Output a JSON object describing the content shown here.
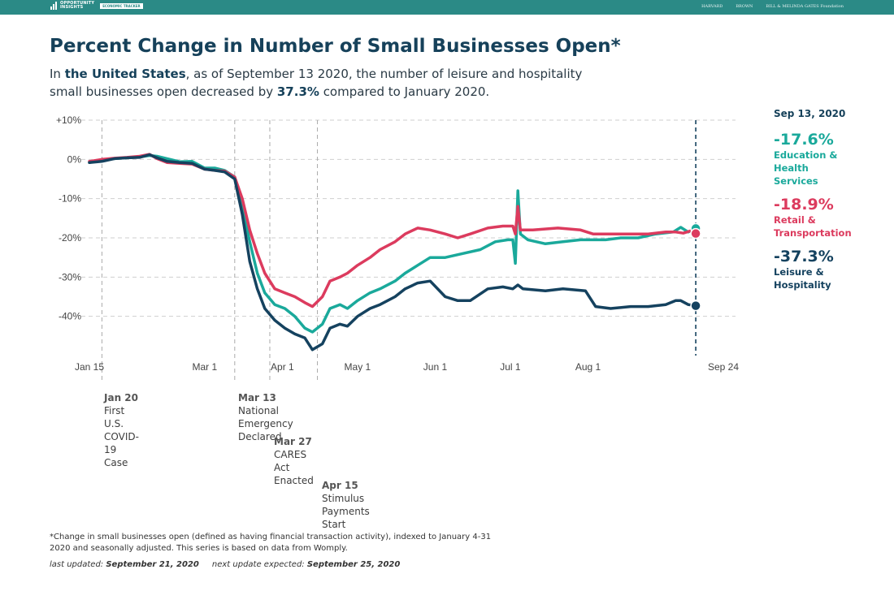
{
  "header": {
    "brand_line1": "OPPORTUNITY",
    "brand_line2": "INSIGHTS",
    "brand_tag": "ECONOMIC TRACKER",
    "partners": [
      "HARVARD",
      "BROWN",
      "BILL & MELINDA GATES Foundation"
    ]
  },
  "title": "Percent Change in Number of Small Businesses Open*",
  "subtitle": {
    "p1": "In ",
    "location": "the United States",
    "p2": ", as of September 13 2020, the number of leisure and hospitality small businesses open decreased by ",
    "value": "37.3%",
    "p3": " compared to January 2020."
  },
  "side": {
    "date": "Sep 13, 2020",
    "items": [
      {
        "value": "-17.6%",
        "name": "Education & Health Services",
        "color": "#1aa99b"
      },
      {
        "value": "-18.9%",
        "name": "Retail & Transportation",
        "color": "#dc3b5e"
      },
      {
        "value": "-37.3%",
        "name": "Leisure & Hospitality",
        "color": "#15425f"
      }
    ]
  },
  "events": [
    {
      "date": "Jan 20",
      "text": [
        "First U.S. COVID-19 Case"
      ]
    },
    {
      "date": "Mar 13",
      "text": [
        "National Emergency",
        "Declared"
      ]
    },
    {
      "date": "Mar 27",
      "text": [
        "CARES Act Enacted"
      ]
    },
    {
      "date": "Apr 15",
      "text": [
        "Stimulus Payments",
        "Start"
      ]
    }
  ],
  "footnote": "*Change in small businesses open (defined as having financial transaction activity), indexed to January 4-31 2020 and seasonally adjusted. This series is based on data from Womply.",
  "updated": {
    "last_label": "last updated: ",
    "last_date": "September 21, 2020",
    "next_label": "next update expected: ",
    "next_date": "September 25, 2020"
  },
  "chart_data": {
    "type": "line",
    "title": "Percent Change in Number of Small Businesses Open*",
    "xlabel": "",
    "ylabel": "",
    "xlim": [
      "2020-01-15",
      "2020-09-24"
    ],
    "ylim": [
      -50,
      10
    ],
    "x_ticks": [
      {
        "date": "2020-01-15",
        "label": "Jan 15"
      },
      {
        "date": "2020-03-01",
        "label": "Mar 1"
      },
      {
        "date": "2020-04-01",
        "label": "Apr 1"
      },
      {
        "date": "2020-05-01",
        "label": "May 1"
      },
      {
        "date": "2020-06-01",
        "label": "Jun 1"
      },
      {
        "date": "2020-07-01",
        "label": "Jul 1"
      },
      {
        "date": "2020-08-01",
        "label": "Aug 1"
      },
      {
        "date": "2020-09-24",
        "label": "Sep 24"
      }
    ],
    "y_ticks": [
      {
        "value": 10,
        "label": "+10%"
      },
      {
        "value": 0,
        "label": "0%"
      },
      {
        "value": -10,
        "label": "-10%"
      },
      {
        "value": -20,
        "label": "-20%"
      },
      {
        "value": -30,
        "label": "-30%"
      },
      {
        "value": -40,
        "label": "-40%"
      }
    ],
    "grid": true,
    "event_lines": [
      "2020-01-20",
      "2020-03-13",
      "2020-03-27",
      "2020-04-15"
    ],
    "marker_date": "2020-09-13",
    "series": [
      {
        "name": "Education & Health Services",
        "color": "#1aa99b",
        "points": [
          [
            "2020-01-15",
            -0.8
          ],
          [
            "2020-01-20",
            -0.2
          ],
          [
            "2020-01-25",
            0.2
          ],
          [
            "2020-01-30",
            0.4
          ],
          [
            "2020-02-04",
            0.6
          ],
          [
            "2020-02-08",
            1.0
          ],
          [
            "2020-02-11",
            0.8
          ],
          [
            "2020-02-15",
            0.2
          ],
          [
            "2020-02-20",
            -0.6
          ],
          [
            "2020-02-25",
            -0.5
          ],
          [
            "2020-03-01",
            -2.2
          ],
          [
            "2020-03-05",
            -2.2
          ],
          [
            "2020-03-09",
            -2.8
          ],
          [
            "2020-03-13",
            -4.5
          ],
          [
            "2020-03-16",
            -12
          ],
          [
            "2020-03-19",
            -21
          ],
          [
            "2020-03-22",
            -29
          ],
          [
            "2020-03-25",
            -34
          ],
          [
            "2020-03-29",
            -37
          ],
          [
            "2020-04-02",
            -38
          ],
          [
            "2020-04-06",
            -40
          ],
          [
            "2020-04-10",
            -43
          ],
          [
            "2020-04-13",
            -44
          ],
          [
            "2020-04-17",
            -42
          ],
          [
            "2020-04-20",
            -38
          ],
          [
            "2020-04-24",
            -37
          ],
          [
            "2020-04-27",
            -38
          ],
          [
            "2020-05-01",
            -36
          ],
          [
            "2020-05-06",
            -34
          ],
          [
            "2020-05-10",
            -33
          ],
          [
            "2020-05-16",
            -31
          ],
          [
            "2020-05-20",
            -29
          ],
          [
            "2020-05-25",
            -27
          ],
          [
            "2020-05-30",
            -25
          ],
          [
            "2020-06-05",
            -25
          ],
          [
            "2020-06-12",
            -24
          ],
          [
            "2020-06-19",
            -23
          ],
          [
            "2020-06-25",
            -21
          ],
          [
            "2020-06-30",
            -20.5
          ],
          [
            "2020-07-02",
            -20.5
          ],
          [
            "2020-07-03",
            -26.5
          ],
          [
            "2020-07-04",
            -8
          ],
          [
            "2020-07-05",
            -19
          ],
          [
            "2020-07-08",
            -20.5
          ],
          [
            "2020-07-15",
            -21.5
          ],
          [
            "2020-07-22",
            -21
          ],
          [
            "2020-07-29",
            -20.5
          ],
          [
            "2020-08-01",
            -20.5
          ],
          [
            "2020-08-08",
            -20.5
          ],
          [
            "2020-08-14",
            -20
          ],
          [
            "2020-08-21",
            -20
          ],
          [
            "2020-08-28",
            -19
          ],
          [
            "2020-09-04",
            -18.5
          ],
          [
            "2020-09-07",
            -17.3
          ],
          [
            "2020-09-10",
            -18.5
          ],
          [
            "2020-09-13",
            -17.6
          ]
        ]
      },
      {
        "name": "Retail & Transportation",
        "color": "#dc3b5e",
        "points": [
          [
            "2020-01-15",
            -0.5
          ],
          [
            "2020-01-20",
            0.0
          ],
          [
            "2020-01-25",
            0.3
          ],
          [
            "2020-01-30",
            0.5
          ],
          [
            "2020-02-04",
            0.8
          ],
          [
            "2020-02-08",
            1.3
          ],
          [
            "2020-02-11",
            0.2
          ],
          [
            "2020-02-15",
            -0.8
          ],
          [
            "2020-02-20",
            -1.0
          ],
          [
            "2020-02-25",
            -1.2
          ],
          [
            "2020-03-01",
            -2.5
          ],
          [
            "2020-03-05",
            -2.8
          ],
          [
            "2020-03-09",
            -3.0
          ],
          [
            "2020-03-13",
            -4.5
          ],
          [
            "2020-03-16",
            -10
          ],
          [
            "2020-03-19",
            -18
          ],
          [
            "2020-03-22",
            -24
          ],
          [
            "2020-03-25",
            -29
          ],
          [
            "2020-03-29",
            -33
          ],
          [
            "2020-04-02",
            -34
          ],
          [
            "2020-04-06",
            -35
          ],
          [
            "2020-04-10",
            -36.5
          ],
          [
            "2020-04-13",
            -37.5
          ],
          [
            "2020-04-17",
            -35
          ],
          [
            "2020-04-20",
            -31
          ],
          [
            "2020-04-24",
            -30
          ],
          [
            "2020-04-27",
            -29
          ],
          [
            "2020-05-01",
            -27
          ],
          [
            "2020-05-06",
            -25
          ],
          [
            "2020-05-10",
            -23
          ],
          [
            "2020-05-16",
            -21
          ],
          [
            "2020-05-20",
            -19
          ],
          [
            "2020-05-25",
            -17.5
          ],
          [
            "2020-05-30",
            -18
          ],
          [
            "2020-06-05",
            -19
          ],
          [
            "2020-06-10",
            -20
          ],
          [
            "2020-06-15",
            -19
          ],
          [
            "2020-06-22",
            -17.5
          ],
          [
            "2020-06-28",
            -17
          ],
          [
            "2020-07-02",
            -17
          ],
          [
            "2020-07-03",
            -19
          ],
          [
            "2020-07-04",
            -12
          ],
          [
            "2020-07-05",
            -18
          ],
          [
            "2020-07-10",
            -18
          ],
          [
            "2020-07-20",
            -17.5
          ],
          [
            "2020-07-29",
            -18
          ],
          [
            "2020-08-03",
            -19
          ],
          [
            "2020-08-10",
            -19
          ],
          [
            "2020-08-18",
            -19
          ],
          [
            "2020-08-25",
            -19
          ],
          [
            "2020-09-01",
            -18.5
          ],
          [
            "2020-09-05",
            -18.5
          ],
          [
            "2020-09-08",
            -18.8
          ],
          [
            "2020-09-11",
            -18.2
          ],
          [
            "2020-09-13",
            -18.9
          ]
        ]
      },
      {
        "name": "Leisure & Hospitality",
        "color": "#15425f",
        "points": [
          [
            "2020-01-15",
            -0.8
          ],
          [
            "2020-01-20",
            -0.5
          ],
          [
            "2020-01-25",
            0.2
          ],
          [
            "2020-01-30",
            0.4
          ],
          [
            "2020-02-04",
            0.5
          ],
          [
            "2020-02-08",
            1.2
          ],
          [
            "2020-02-11",
            0.4
          ],
          [
            "2020-02-15",
            -0.5
          ],
          [
            "2020-02-20",
            -0.8
          ],
          [
            "2020-02-25",
            -1.0
          ],
          [
            "2020-03-01",
            -2.5
          ],
          [
            "2020-03-05",
            -2.8
          ],
          [
            "2020-03-09",
            -3.2
          ],
          [
            "2020-03-13",
            -5
          ],
          [
            "2020-03-16",
            -14
          ],
          [
            "2020-03-19",
            -26
          ],
          [
            "2020-03-22",
            -33
          ],
          [
            "2020-03-25",
            -38
          ],
          [
            "2020-03-29",
            -41
          ],
          [
            "2020-04-02",
            -43
          ],
          [
            "2020-04-06",
            -44.5
          ],
          [
            "2020-04-10",
            -45.5
          ],
          [
            "2020-04-13",
            -48.5
          ],
          [
            "2020-04-17",
            -47
          ],
          [
            "2020-04-20",
            -43
          ],
          [
            "2020-04-24",
            -42
          ],
          [
            "2020-04-27",
            -42.5
          ],
          [
            "2020-05-01",
            -40
          ],
          [
            "2020-05-06",
            -38
          ],
          [
            "2020-05-10",
            -37
          ],
          [
            "2020-05-16",
            -35
          ],
          [
            "2020-05-20",
            -33
          ],
          [
            "2020-05-25",
            -31.5
          ],
          [
            "2020-05-30",
            -31
          ],
          [
            "2020-06-05",
            -35
          ],
          [
            "2020-06-10",
            -36
          ],
          [
            "2020-06-15",
            -36
          ],
          [
            "2020-06-22",
            -33
          ],
          [
            "2020-06-28",
            -32.5
          ],
          [
            "2020-07-02",
            -33
          ],
          [
            "2020-07-04",
            -32
          ],
          [
            "2020-07-06",
            -33
          ],
          [
            "2020-07-15",
            -33.5
          ],
          [
            "2020-07-22",
            -33
          ],
          [
            "2020-07-31",
            -33.5
          ],
          [
            "2020-08-04",
            -37.5
          ],
          [
            "2020-08-10",
            -38
          ],
          [
            "2020-08-18",
            -37.5
          ],
          [
            "2020-08-25",
            -37.5
          ],
          [
            "2020-09-01",
            -37
          ],
          [
            "2020-09-05",
            -36
          ],
          [
            "2020-09-07",
            -36
          ],
          [
            "2020-09-10",
            -37
          ],
          [
            "2020-09-13",
            -37.3
          ]
        ]
      }
    ]
  }
}
